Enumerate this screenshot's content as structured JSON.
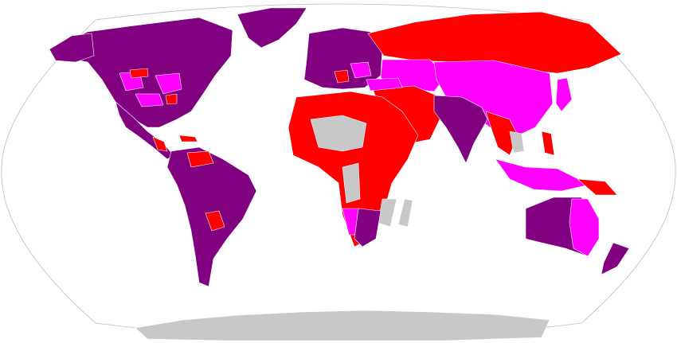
{
  "map": {
    "projection": "robinson",
    "colors": {
      "purple": "#800080",
      "red": "#ff0000",
      "magenta": "#ff00ff",
      "gray": "#c8c8c8",
      "ocean": "#ffffff",
      "outline": "#bbbbbb"
    },
    "regions": [
      {
        "id": "north-america",
        "cat": "purple"
      },
      {
        "id": "greenland",
        "cat": "purple"
      },
      {
        "id": "alaska",
        "cat": "purple"
      },
      {
        "id": "us-magenta-1",
        "cat": "magenta"
      },
      {
        "id": "us-magenta-2",
        "cat": "magenta"
      },
      {
        "id": "us-magenta-3",
        "cat": "magenta"
      },
      {
        "id": "us-red-1",
        "cat": "red"
      },
      {
        "id": "us-red-2",
        "cat": "red"
      },
      {
        "id": "central-america",
        "cat": "purple"
      },
      {
        "id": "central-red",
        "cat": "red"
      },
      {
        "id": "caribbean-red",
        "cat": "red"
      },
      {
        "id": "south-america",
        "cat": "purple"
      },
      {
        "id": "sa-red",
        "cat": "red"
      },
      {
        "id": "sa-red-2",
        "cat": "red"
      },
      {
        "id": "europe",
        "cat": "purple"
      },
      {
        "id": "europe-magenta",
        "cat": "magenta"
      },
      {
        "id": "europe-red",
        "cat": "red"
      },
      {
        "id": "russia",
        "cat": "red"
      },
      {
        "id": "central-asia",
        "cat": "magenta"
      },
      {
        "id": "china",
        "cat": "magenta"
      },
      {
        "id": "japan",
        "cat": "magenta"
      },
      {
        "id": "middle-east",
        "cat": "red"
      },
      {
        "id": "turkey",
        "cat": "magenta"
      },
      {
        "id": "india",
        "cat": "purple"
      },
      {
        "id": "se-asia",
        "cat": "red"
      },
      {
        "id": "indochina-gray",
        "cat": "gray"
      },
      {
        "id": "philippines",
        "cat": "red"
      },
      {
        "id": "indonesia",
        "cat": "magenta"
      },
      {
        "id": "new-guinea",
        "cat": "red"
      },
      {
        "id": "africa",
        "cat": "red"
      },
      {
        "id": "sahel-gray",
        "cat": "gray"
      },
      {
        "id": "central-gray",
        "cat": "gray"
      },
      {
        "id": "mozambique-gray",
        "cat": "gray"
      },
      {
        "id": "madagascar",
        "cat": "gray"
      },
      {
        "id": "namibia",
        "cat": "magenta"
      },
      {
        "id": "southern-africa",
        "cat": "purple"
      },
      {
        "id": "australia",
        "cat": "purple"
      },
      {
        "id": "australia-east",
        "cat": "magenta"
      },
      {
        "id": "new-zealand",
        "cat": "purple"
      },
      {
        "id": "antarctica",
        "cat": "gray"
      }
    ]
  }
}
